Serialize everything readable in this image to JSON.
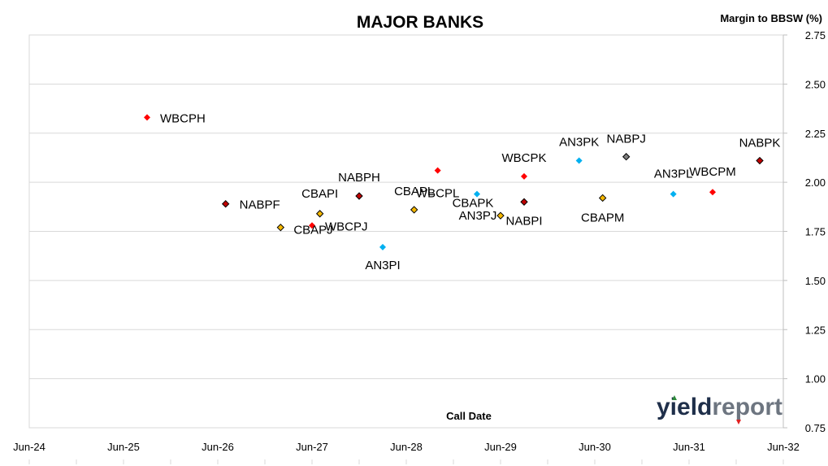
{
  "chart_data": {
    "type": "scatter",
    "title": "MAJOR BANKS",
    "xlabel": "Call Date",
    "ylabel": "Margin to BBSW (%)",
    "x_ticks": [
      "Jun-24",
      "Jun-25",
      "Jun-26",
      "Jun-27",
      "Jun-28",
      "Jun-29",
      "Jun-30",
      "Jun-31",
      "Jun-32"
    ],
    "xlim": [
      "Jun-24",
      "Jun-32"
    ],
    "ylim": [
      0.75,
      2.75
    ],
    "y_ticks": [
      "0.75",
      "1.00",
      "1.25",
      "1.50",
      "1.75",
      "2.00",
      "2.25",
      "2.50",
      "2.75"
    ],
    "grid": "horizontal",
    "points": [
      {
        "label": "WBCPH",
        "x": "Sep-25",
        "y": 2.33,
        "color": "#ff0000"
      },
      {
        "label": "NABPF",
        "x": "Jul-26",
        "y": 1.89,
        "color": "#c00000"
      },
      {
        "label": "CBAPJ",
        "x": "Feb-27",
        "y": 1.77,
        "color": "#f5b800"
      },
      {
        "label": "WBCPJ",
        "x": "Jun-27",
        "y": 1.78,
        "color": "#ff0000"
      },
      {
        "label": "CBAPI",
        "x": "Jul-27",
        "y": 1.84,
        "color": "#f5b800"
      },
      {
        "label": "NABPH",
        "x": "Dec-27",
        "y": 1.93,
        "color": "#c00000"
      },
      {
        "label": "AN3PI",
        "x": "Mar-28",
        "y": 1.67,
        "color": "#00b0f0"
      },
      {
        "label": "CBAPL",
        "x": "Jul-28",
        "y": 1.86,
        "color": "#f5b800"
      },
      {
        "label": "WBCPL",
        "x": "Oct-28",
        "y": 2.06,
        "color": "#ff0000"
      },
      {
        "label": "CBAPK",
        "x": "Mar-29",
        "y": 1.94,
        "color": "#00b0f0"
      },
      {
        "label": "AN3PJ",
        "x": "Jun-29",
        "y": 1.83,
        "color": "#f5b800"
      },
      {
        "label": "WBCPK",
        "x": "Sep-29",
        "y": 2.03,
        "color": "#ff0000"
      },
      {
        "label": "NABPI",
        "x": "Sep-29",
        "y": 1.9,
        "color": "#c00000"
      },
      {
        "label": "AN3PK",
        "x": "Apr-30",
        "y": 2.11,
        "color": "#00b0f0"
      },
      {
        "label": "CBAPM",
        "x": "Jul-30",
        "y": 1.92,
        "color": "#f5b800"
      },
      {
        "label": "NABPJ",
        "x": "Oct-30",
        "y": 2.13,
        "color": "#808080"
      },
      {
        "label": "AN3PL",
        "x": "Apr-31",
        "y": 1.94,
        "color": "#00b0f0"
      },
      {
        "label": "WBCPM",
        "x": "Sep-31",
        "y": 1.95,
        "color": "#ff0000"
      },
      {
        "label": "NABPK",
        "x": "Mar-32",
        "y": 2.11,
        "color": "#c00000"
      }
    ]
  },
  "logo": {
    "text_dark": "yield",
    "text_light": "report",
    "color_dark": "#1f2f4a",
    "color_light": "#6d7580"
  }
}
